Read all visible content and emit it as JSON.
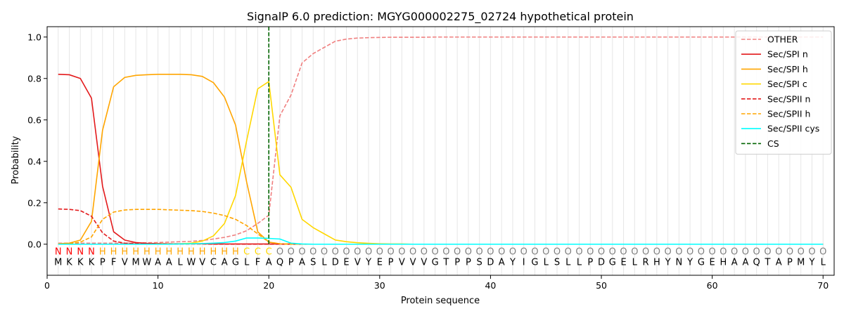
{
  "chart_data": {
    "type": "line",
    "title": "SignalP 6.0 prediction: MGYG000002275_02724 hypothetical protein",
    "xlabel": "Protein sequence",
    "ylabel": "Probability",
    "xlim": [
      0,
      71
    ],
    "ylim": [
      -0.15,
      1.05
    ],
    "xticks": [
      0,
      10,
      20,
      30,
      40,
      50,
      60,
      70
    ],
    "yticks": [
      0.0,
      0.2,
      0.4,
      0.6,
      0.8,
      1.0
    ],
    "ytick_labels": [
      "0.0",
      "0.2",
      "0.4",
      "0.6",
      "0.8",
      "1.0"
    ],
    "legend_position": "top-right",
    "sequence": [
      "M",
      "K",
      "K",
      "K",
      "P",
      "F",
      "V",
      "M",
      "W",
      "A",
      "A",
      "L",
      "W",
      "V",
      "C",
      "A",
      "G",
      "L",
      "F",
      "A",
      "Q",
      "P",
      "A",
      "S",
      "L",
      "D",
      "E",
      "V",
      "Y",
      "E",
      "P",
      "V",
      "V",
      "V",
      "G",
      "T",
      "P",
      "P",
      "S",
      "D",
      "A",
      "Y",
      "I",
      "G",
      "L",
      "S",
      "L",
      "L",
      "P",
      "D",
      "G",
      "E",
      "L",
      "R",
      "H",
      "Y",
      "N",
      "Y",
      "G",
      "E",
      "H",
      "A",
      "A",
      "Q",
      "T",
      "A",
      "P",
      "M",
      "Y",
      "L"
    ],
    "region_labels": [
      "N",
      "N",
      "N",
      "N",
      "H",
      "H",
      "H",
      "H",
      "H",
      "H",
      "H",
      "H",
      "H",
      "H",
      "H",
      "H",
      "H",
      "C",
      "C",
      "C",
      "O",
      "O",
      "O",
      "O",
      "O",
      "O",
      "O",
      "O",
      "O",
      "O",
      "O",
      "O",
      "O",
      "O",
      "O",
      "O",
      "O",
      "O",
      "O",
      "O",
      "O",
      "O",
      "O",
      "O",
      "O",
      "O",
      "O",
      "O",
      "O",
      "O",
      "O",
      "O",
      "O",
      "O",
      "O",
      "O",
      "O",
      "O",
      "O",
      "O",
      "O",
      "O",
      "O",
      "O",
      "O",
      "O",
      "O",
      "O",
      "O",
      "O"
    ],
    "region_colors": {
      "N": "#ff0000",
      "H": "#ffa500",
      "C": "#ffd700",
      "O": "#808080"
    },
    "cs_position": 20,
    "series": [
      {
        "name": "OTHER",
        "color": "#f08080",
        "dash": "dashed",
        "values": [
          0.005,
          0.005,
          0.005,
          0.005,
          0.005,
          0.005,
          0.005,
          0.006,
          0.007,
          0.008,
          0.01,
          0.012,
          0.014,
          0.018,
          0.025,
          0.033,
          0.045,
          0.065,
          0.1,
          0.14,
          0.62,
          0.72,
          0.875,
          0.92,
          0.95,
          0.98,
          0.99,
          0.995,
          0.997,
          0.998,
          0.999,
          0.999,
          0.999,
          0.999,
          1.0,
          1.0,
          1.0,
          1.0,
          1.0,
          1.0,
          1.0,
          1.0,
          1.0,
          1.0,
          1.0,
          1.0,
          1.0,
          1.0,
          1.0,
          1.0,
          1.0,
          1.0,
          1.0,
          1.0,
          1.0,
          1.0,
          1.0,
          1.0,
          1.0,
          1.0,
          1.0,
          1.0,
          1.0,
          1.0,
          1.0,
          1.0,
          1.0,
          1.0,
          1.0,
          1.0
        ]
      },
      {
        "name": "Sec/SPI n",
        "color": "#e31a1c",
        "dash": "solid",
        "values": [
          0.82,
          0.818,
          0.8,
          0.705,
          0.28,
          0.06,
          0.02,
          0.008,
          0.004,
          0.003,
          0.002,
          0.002,
          0.002,
          0.002,
          0.001,
          0.001,
          0.001,
          0.001,
          0.001,
          0.001,
          0.001,
          0.001,
          0.0,
          0.0,
          0.0,
          0.0,
          0.0,
          0.0,
          0.0,
          0.0,
          0.0,
          0.0,
          0.0,
          0.0,
          0.0,
          0.0,
          0.0,
          0.0,
          0.0,
          0.0,
          0.0,
          0.0,
          0.0,
          0.0,
          0.0,
          0.0,
          0.0,
          0.0,
          0.0,
          0.0,
          0.0,
          0.0,
          0.0,
          0.0,
          0.0,
          0.0,
          0.0,
          0.0,
          0.0,
          0.0,
          0.0,
          0.0,
          0.0,
          0.0,
          0.0,
          0.0,
          0.0,
          0.0,
          0.0,
          0.0
        ]
      },
      {
        "name": "Sec/SPI h",
        "color": "#ffa500",
        "dash": "solid",
        "values": [
          0.002,
          0.005,
          0.02,
          0.11,
          0.55,
          0.76,
          0.805,
          0.815,
          0.818,
          0.82,
          0.82,
          0.82,
          0.818,
          0.81,
          0.78,
          0.71,
          0.575,
          0.3,
          0.06,
          0.01,
          0.002,
          0.001,
          0.0,
          0.0,
          0.0,
          0.0,
          0.0,
          0.0,
          0.0,
          0.0,
          0.0,
          0.0,
          0.0,
          0.0,
          0.0,
          0.0,
          0.0,
          0.0,
          0.0,
          0.0,
          0.0,
          0.0,
          0.0,
          0.0,
          0.0,
          0.0,
          0.0,
          0.0,
          0.0,
          0.0,
          0.0,
          0.0,
          0.0,
          0.0,
          0.0,
          0.0,
          0.0,
          0.0,
          0.0,
          0.0,
          0.0,
          0.0,
          0.0,
          0.0,
          0.0,
          0.0,
          0.0,
          0.0,
          0.0,
          0.0
        ]
      },
      {
        "name": "Sec/SPI c",
        "color": "#ffd700",
        "dash": "solid",
        "values": [
          0.0,
          0.0,
          0.0,
          0.0,
          0.0,
          0.0,
          0.0,
          0.0,
          0.0,
          0.001,
          0.001,
          0.002,
          0.005,
          0.015,
          0.04,
          0.1,
          0.235,
          0.5,
          0.75,
          0.785,
          0.335,
          0.275,
          0.12,
          0.08,
          0.05,
          0.02,
          0.012,
          0.007,
          0.004,
          0.002,
          0.001,
          0.001,
          0.0,
          0.0,
          0.0,
          0.0,
          0.0,
          0.0,
          0.0,
          0.0,
          0.0,
          0.0,
          0.0,
          0.0,
          0.0,
          0.0,
          0.0,
          0.0,
          0.0,
          0.0,
          0.0,
          0.0,
          0.0,
          0.0,
          0.0,
          0.0,
          0.0,
          0.0,
          0.0,
          0.0,
          0.0,
          0.0,
          0.0,
          0.0,
          0.0,
          0.0,
          0.0,
          0.0,
          0.0,
          0.0
        ]
      },
      {
        "name": "Sec/SPII n",
        "color": "#e31a1c",
        "dash": "dashed",
        "values": [
          0.17,
          0.168,
          0.162,
          0.135,
          0.055,
          0.015,
          0.005,
          0.003,
          0.002,
          0.001,
          0.001,
          0.001,
          0.001,
          0.001,
          0.0,
          0.0,
          0.0,
          0.0,
          0.0,
          0.0,
          0.0,
          0.0,
          0.0,
          0.0,
          0.0,
          0.0,
          0.0,
          0.0,
          0.0,
          0.0,
          0.0,
          0.0,
          0.0,
          0.0,
          0.0,
          0.0,
          0.0,
          0.0,
          0.0,
          0.0,
          0.0,
          0.0,
          0.0,
          0.0,
          0.0,
          0.0,
          0.0,
          0.0,
          0.0,
          0.0,
          0.0,
          0.0,
          0.0,
          0.0,
          0.0,
          0.0,
          0.0,
          0.0,
          0.0,
          0.0,
          0.0,
          0.0,
          0.0,
          0.0,
          0.0,
          0.0,
          0.0,
          0.0,
          0.0,
          0.0
        ]
      },
      {
        "name": "Sec/SPII h",
        "color": "#ffa500",
        "dash": "dashed",
        "values": [
          0.0,
          0.002,
          0.01,
          0.035,
          0.12,
          0.155,
          0.165,
          0.168,
          0.168,
          0.168,
          0.166,
          0.164,
          0.162,
          0.158,
          0.15,
          0.138,
          0.12,
          0.09,
          0.05,
          0.01,
          0.002,
          0.0,
          0.0,
          0.0,
          0.0,
          0.0,
          0.0,
          0.0,
          0.0,
          0.0,
          0.0,
          0.0,
          0.0,
          0.0,
          0.0,
          0.0,
          0.0,
          0.0,
          0.0,
          0.0,
          0.0,
          0.0,
          0.0,
          0.0,
          0.0,
          0.0,
          0.0,
          0.0,
          0.0,
          0.0,
          0.0,
          0.0,
          0.0,
          0.0,
          0.0,
          0.0,
          0.0,
          0.0,
          0.0,
          0.0,
          0.0,
          0.0,
          0.0,
          0.0,
          0.0,
          0.0,
          0.0,
          0.0,
          0.0,
          0.0
        ]
      },
      {
        "name": "Sec/SPII cys",
        "color": "#00ffff",
        "dash": "solid",
        "values": [
          0.0,
          0.0,
          0.0,
          0.0,
          0.0,
          0.0,
          0.0,
          0.0,
          0.0,
          0.0,
          0.0,
          0.001,
          0.002,
          0.003,
          0.005,
          0.008,
          0.015,
          0.03,
          0.03,
          0.028,
          0.025,
          0.005,
          0.001,
          0.0,
          0.0,
          0.0,
          0.0,
          0.0,
          0.0,
          0.0,
          0.0,
          0.0,
          0.0,
          0.0,
          0.0,
          0.0,
          0.0,
          0.0,
          0.0,
          0.0,
          0.0,
          0.0,
          0.0,
          0.0,
          0.0,
          0.0,
          0.0,
          0.0,
          0.0,
          0.0,
          0.0,
          0.0,
          0.0,
          0.0,
          0.0,
          0.0,
          0.0,
          0.0,
          0.0,
          0.0,
          0.0,
          0.0,
          0.0,
          0.0,
          0.0,
          0.0,
          0.0,
          0.0,
          0.0,
          0.0
        ]
      }
    ],
    "cs_series": {
      "name": "CS",
      "color": "#006400",
      "dash": "dashed"
    }
  }
}
